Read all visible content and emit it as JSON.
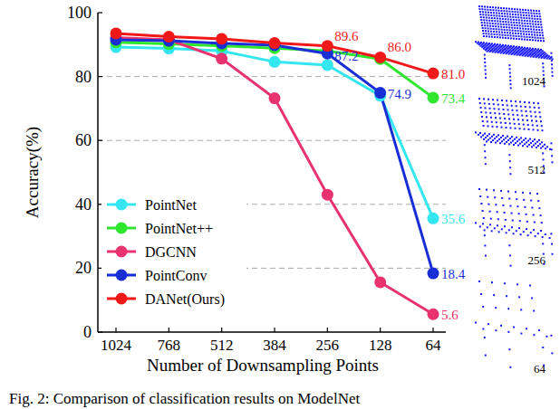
{
  "chart_data": {
    "type": "line",
    "x_label": "Number of Downsampling Points",
    "y_label": "Accuracy(%)",
    "categories": [
      "1024",
      "768",
      "512",
      "384",
      "256",
      "128",
      "64"
    ],
    "ylim": [
      0,
      100
    ],
    "yticks": [
      0,
      20,
      40,
      60,
      80,
      100
    ],
    "grid": true,
    "legend": "lower left",
    "marker": "circle",
    "data_labels": true,
    "series": [
      {
        "name": "PointNet",
        "color": "#33e6f0",
        "values": [
          89.2,
          88.8,
          88.0,
          84.6,
          83.6,
          74.0,
          35.6
        ],
        "value_labels": [
          null,
          null,
          null,
          null,
          null,
          null,
          "35.6"
        ]
      },
      {
        "name": "PointNet++",
        "color": "#2ee62e",
        "values": [
          90.7,
          90.2,
          89.6,
          88.9,
          88.0,
          85.5,
          73.4
        ],
        "value_labels": [
          null,
          null,
          null,
          null,
          null,
          null,
          "73.4"
        ]
      },
      {
        "name": "DGCNN",
        "color": "#e8336e",
        "values": [
          92.2,
          91.5,
          85.6,
          73.2,
          43.0,
          15.6,
          5.6
        ],
        "value_labels": [
          null,
          null,
          null,
          null,
          null,
          null,
          "5.6"
        ]
      },
      {
        "name": "PointConv",
        "color": "#1a2ed6",
        "values": [
          91.5,
          91.2,
          90.4,
          89.8,
          87.2,
          74.9,
          18.4
        ],
        "value_labels": [
          null,
          null,
          null,
          null,
          "87.2",
          "74.9",
          "18.4"
        ]
      },
      {
        "name": "DANet(Ours)",
        "color": "#f01818",
        "values": [
          93.5,
          92.5,
          91.8,
          90.5,
          89.6,
          86.0,
          81.0
        ],
        "value_labels": [
          null,
          null,
          null,
          null,
          "89.6",
          "86.0",
          "81.0"
        ]
      }
    ],
    "image_labels": [
      "1024",
      "512",
      "256",
      "64"
    ],
    "caption": "Fig. 2: Comparison of classification results on ModelNet"
  }
}
